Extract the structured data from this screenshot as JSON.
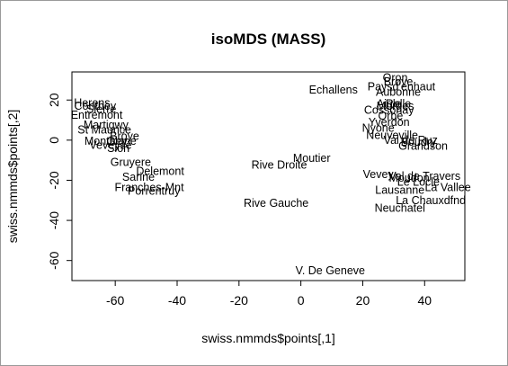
{
  "chart_data": {
    "type": "scatter",
    "title": "isoMDS (MASS)",
    "xlabel": "swiss.nmmds$points[,1]",
    "ylabel": "swiss.nmmds$points[,2]",
    "xlim": [
      -74,
      53
    ],
    "ylim": [
      -70,
      34
    ],
    "xticks": [
      -60,
      -40,
      -20,
      0,
      20,
      40
    ],
    "yticks": [
      -60,
      -40,
      -20,
      0,
      20
    ],
    "grid": false,
    "points": [
      {
        "label": "Oron",
        "x": 30.5,
        "y": 31
      },
      {
        "label": "Broye",
        "x": 31.5,
        "y": 29
      },
      {
        "label": "Paysd'enhaut",
        "x": 32.5,
        "y": 26.5
      },
      {
        "label": "Aubonne",
        "x": 31.5,
        "y": 24
      },
      {
        "label": "Echallens",
        "x": 10.5,
        "y": 25
      },
      {
        "label": "Aigle",
        "x": 28.5,
        "y": 18
      },
      {
        "label": "Rolle",
        "x": 31.5,
        "y": 18
      },
      {
        "label": "Morges",
        "x": 30.5,
        "y": 17
      },
      {
        "label": "Cossonay",
        "x": 28.5,
        "y": 15
      },
      {
        "label": "Orbe",
        "x": 29,
        "y": 12
      },
      {
        "label": "Yverdon",
        "x": 28.5,
        "y": 9
      },
      {
        "label": "Nyone",
        "x": 25,
        "y": 6
      },
      {
        "label": "Neuveville",
        "x": 29.5,
        "y": 2.5
      },
      {
        "label": "Val de Ruz",
        "x": 35.5,
        "y": 0
      },
      {
        "label": "Boudry",
        "x": 38,
        "y": -1
      },
      {
        "label": "Grandson",
        "x": 39.5,
        "y": -3
      },
      {
        "label": "Vevey",
        "x": 25,
        "y": -17
      },
      {
        "label": "Val de Travers",
        "x": 40,
        "y": -18
      },
      {
        "label": "Moudon",
        "x": 35,
        "y": -19
      },
      {
        "label": "Le Locle",
        "x": 38,
        "y": -21
      },
      {
        "label": "La Vallee",
        "x": 47.5,
        "y": -23.5
      },
      {
        "label": "Lausanne",
        "x": 32,
        "y": -25
      },
      {
        "label": "La Chauxdfnd",
        "x": 42,
        "y": -30
      },
      {
        "label": "Neuchatel",
        "x": 32,
        "y": -34
      },
      {
        "label": "Moutier",
        "x": 3.5,
        "y": -9
      },
      {
        "label": "Rive Droite",
        "x": -7,
        "y": -12.5
      },
      {
        "label": "Rive Gauche",
        "x": -8,
        "y": -31.5
      },
      {
        "label": "V. De Geneve",
        "x": 9.5,
        "y": -65
      },
      {
        "label": "Herens",
        "x": -67.5,
        "y": 18.5
      },
      {
        "label": "Conthey",
        "x": -66.5,
        "y": 17
      },
      {
        "label": "Sierre",
        "x": -64.5,
        "y": 15.5
      },
      {
        "label": "Entremont",
        "x": -66,
        "y": 12.5
      },
      {
        "label": "Martigwy",
        "x": -63,
        "y": 7.5
      },
      {
        "label": "St Maurice",
        "x": -63.5,
        "y": 5
      },
      {
        "label": "Broye",
        "x": -57,
        "y": 2
      },
      {
        "label": "Monthey",
        "x": -63,
        "y": -0.5
      },
      {
        "label": "Glane",
        "x": -58,
        "y": -0.5
      },
      {
        "label": "Veveyse",
        "x": -61.5,
        "y": -2.5
      },
      {
        "label": "Sion",
        "x": -59,
        "y": -4
      },
      {
        "label": "Gruyere",
        "x": -55,
        "y": -11
      },
      {
        "label": "Delemont",
        "x": -45.5,
        "y": -15.5
      },
      {
        "label": "Sarine",
        "x": -52.5,
        "y": -18.5
      },
      {
        "label": "Franches-Mnt",
        "x": -49,
        "y": -23.5
      },
      {
        "label": "Porrentruy",
        "x": -47.5,
        "y": -25.5
      }
    ]
  }
}
